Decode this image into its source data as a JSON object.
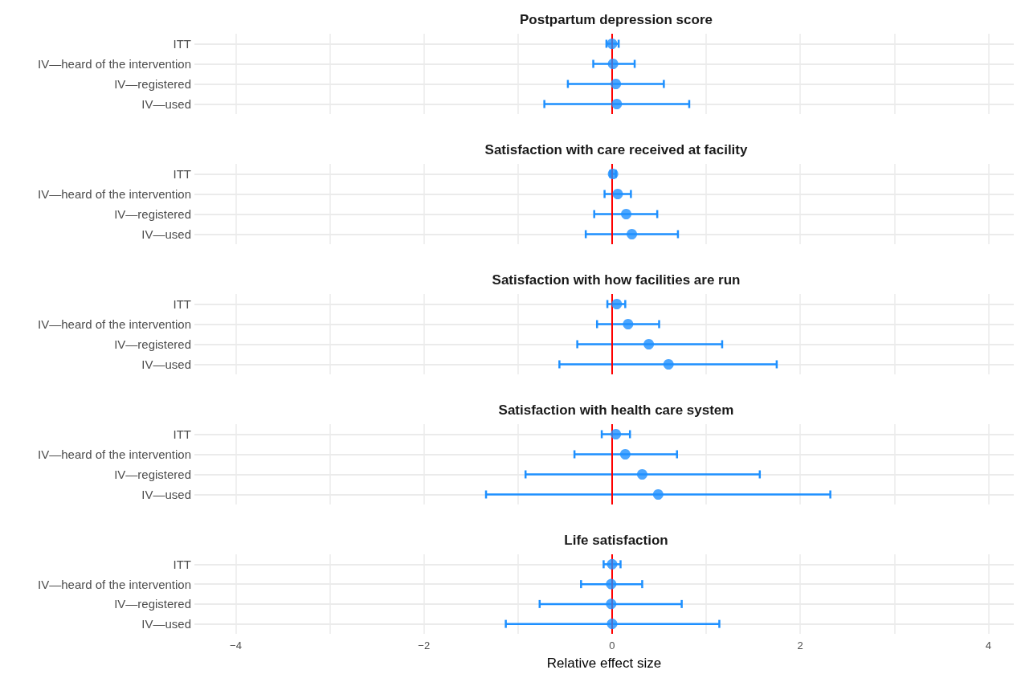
{
  "chart_data": [
    {
      "type": "scatter",
      "title": "Postpartum depression score",
      "categories": [
        "ITT",
        "IV—heard of the intervention",
        "IV—registered",
        "IV—used"
      ],
      "orientation": "horizontal",
      "series": [
        {
          "color": "#1e90ff",
          "values": [
            0.0,
            0.01,
            0.04,
            0.05
          ],
          "errors": [
            [
              -0.06,
              0.07
            ],
            [
              -0.2,
              0.24
            ],
            [
              -0.47,
              0.55
            ],
            [
              -0.72,
              0.82
            ]
          ]
        }
      ],
      "xlim": [
        -4.44,
        4.27
      ],
      "xticks": [
        -4,
        {
          "value": -3,
          "label": null
        },
        -2,
        {
          "value": -1,
          "label": null
        },
        0,
        {
          "value": 1,
          "label": null
        },
        2,
        {
          "value": 3,
          "label": null
        },
        4
      ],
      "tick_labels": "y",
      "grid": true,
      "marker": "circle",
      "ref_lines": [
        {
          "axis": "x",
          "value": 0,
          "color": "#ff0000"
        }
      ]
    },
    {
      "type": "scatter",
      "title": "Satisfaction with care received at facility",
      "categories": [
        "ITT",
        "IV—heard of the intervention",
        "IV—registered",
        "IV—used"
      ],
      "orientation": "horizontal",
      "series": [
        {
          "color": "#1e90ff",
          "values": [
            0.01,
            0.06,
            0.15,
            0.21
          ],
          "errors": [
            [
              -0.02,
              0.04
            ],
            [
              -0.08,
              0.2
            ],
            [
              -0.19,
              0.48
            ],
            [
              -0.28,
              0.7
            ]
          ]
        }
      ],
      "xlim": [
        -4.44,
        4.27
      ],
      "xticks": [
        -4,
        {
          "value": -3,
          "label": null
        },
        -2,
        {
          "value": -1,
          "label": null
        },
        0,
        {
          "value": 1,
          "label": null
        },
        2,
        {
          "value": 3,
          "label": null
        },
        4
      ],
      "tick_labels": "y",
      "grid": true,
      "marker": "circle",
      "ref_lines": [
        {
          "axis": "x",
          "value": 0,
          "color": "#ff0000"
        }
      ]
    },
    {
      "type": "scatter",
      "title": "Satisfaction with how facilities are run",
      "categories": [
        "ITT",
        "IV—heard of the intervention",
        "IV—registered",
        "IV—used"
      ],
      "orientation": "horizontal",
      "series": [
        {
          "color": "#1e90ff",
          "values": [
            0.05,
            0.17,
            0.39,
            0.6
          ],
          "errors": [
            [
              -0.05,
              0.14
            ],
            [
              -0.16,
              0.5
            ],
            [
              -0.37,
              1.17
            ],
            [
              -0.56,
              1.75
            ]
          ]
        }
      ],
      "xlim": [
        -4.44,
        4.27
      ],
      "xticks": [
        -4,
        {
          "value": -3,
          "label": null
        },
        -2,
        {
          "value": -1,
          "label": null
        },
        0,
        {
          "value": 1,
          "label": null
        },
        2,
        {
          "value": 3,
          "label": null
        },
        4
      ],
      "tick_labels": "y",
      "grid": true,
      "marker": "circle",
      "ref_lines": [
        {
          "axis": "x",
          "value": 0,
          "color": "#ff0000"
        }
      ]
    },
    {
      "type": "scatter",
      "title": "Satisfaction with health care system",
      "categories": [
        "ITT",
        "IV—heard of the intervention",
        "IV—registered",
        "IV—used"
      ],
      "orientation": "horizontal",
      "series": [
        {
          "color": "#1e90ff",
          "values": [
            0.04,
            0.14,
            0.32,
            0.49
          ],
          "errors": [
            [
              -0.11,
              0.19
            ],
            [
              -0.4,
              0.69
            ],
            [
              -0.92,
              1.57
            ],
            [
              -1.34,
              2.32
            ]
          ]
        }
      ],
      "xlim": [
        -4.44,
        4.27
      ],
      "xticks": [
        -4,
        {
          "value": -3,
          "label": null
        },
        -2,
        {
          "value": -1,
          "label": null
        },
        0,
        {
          "value": 1,
          "label": null
        },
        2,
        {
          "value": 3,
          "label": null
        },
        4
      ],
      "tick_labels": "y",
      "grid": true,
      "marker": "circle",
      "ref_lines": [
        {
          "axis": "x",
          "value": 0,
          "color": "#ff0000"
        }
      ]
    },
    {
      "type": "scatter",
      "title": "Life satisfaction",
      "xlabel": "Relative effect size",
      "categories": [
        "ITT",
        "IV—heard of the intervention",
        "IV—registered",
        "IV—used"
      ],
      "orientation": "horizontal",
      "series": [
        {
          "color": "#1e90ff",
          "values": [
            0.0,
            -0.01,
            -0.01,
            0.0
          ],
          "errors": [
            [
              -0.09,
              0.09
            ],
            [
              -0.33,
              0.32
            ],
            [
              -0.77,
              0.74
            ],
            [
              -1.13,
              1.14
            ]
          ]
        }
      ],
      "xlim": [
        -4.44,
        4.27
      ],
      "xticks": [
        -4,
        {
          "value": -3,
          "label": null
        },
        -2,
        {
          "value": -1,
          "label": null
        },
        0,
        {
          "value": 1,
          "label": null
        },
        2,
        {
          "value": 3,
          "label": null
        },
        4
      ],
      "grid": true,
      "marker": "circle",
      "ref_lines": [
        {
          "axis": "x",
          "value": 0,
          "color": "#ff0000"
        }
      ]
    }
  ]
}
